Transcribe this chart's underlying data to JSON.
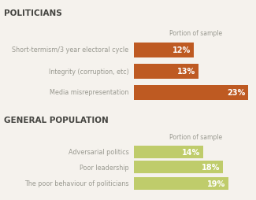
{
  "background_color": "#f5f2ed",
  "section1_title": "POLITICIANS",
  "section2_title": "GENERAL POPULATION",
  "col_header": "Portion of sample",
  "politicians": {
    "labels": [
      "Short-termism/3 year electoral cycle",
      "Integrity (corruption, etc)",
      "Media misrepresentation"
    ],
    "values": [
      12,
      13,
      23
    ],
    "color": "#be5a22"
  },
  "general": {
    "labels": [
      "Adversarial politics",
      "Poor leadership",
      "The poor behaviour of politicians"
    ],
    "values": [
      14,
      18,
      19
    ],
    "color": "#bfcc6b"
  },
  "label_color": "#999990",
  "title_color": "#444440",
  "bar_text_color": "#ffffff",
  "header_color": "#999990",
  "max_value": 25,
  "label_fontsize": 5.8,
  "title_fontsize": 7.5,
  "header_fontsize": 5.5,
  "bar_value_fontsize": 7.0
}
